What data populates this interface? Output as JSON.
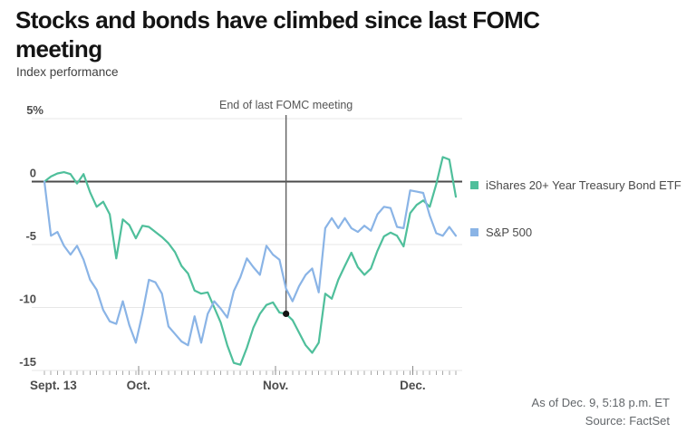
{
  "header": {
    "title": "Stocks and bonds have climbed since last FOMC meeting",
    "subtitle": "Index performance"
  },
  "footer": {
    "as_of": "As of Dec. 9, 5:18 p.m. ET",
    "source": "Source: FactSet"
  },
  "chart_data": {
    "type": "line",
    "title": "Stocks and bonds have climbed since last FOMC meeting",
    "subtitle": "Index performance",
    "unit": "percent change",
    "grid": true,
    "legend_position": "right",
    "x_axis": {
      "start_label": "Sept. 13",
      "month_labels": [
        "Oct.",
        "Nov.",
        "Dec."
      ],
      "month_tick_days": [
        14.4,
        35.4,
        56.4
      ],
      "n_points": 64
    },
    "y_axis": {
      "ticks": [
        {
          "label": "5%",
          "value": 5
        },
        {
          "label": "0",
          "value": 0
        },
        {
          "label": "-5",
          "value": -5
        },
        {
          "label": "-10",
          "value": -10
        },
        {
          "label": "-15",
          "value": -15
        }
      ],
      "ylim": [
        -15.5,
        5.5
      ]
    },
    "series": [
      {
        "name": "iShares 20+ Year Treasury Bond ETF",
        "color": "#4fbf9b",
        "values": [
          0,
          0.4,
          0.65,
          0.75,
          0.6,
          -0.15,
          0.6,
          -0.85,
          -2.0,
          -1.6,
          -2.6,
          -6.1,
          -3.0,
          -3.45,
          -4.5,
          -3.5,
          -3.6,
          -4.0,
          -4.4,
          -4.9,
          -5.6,
          -6.7,
          -7.3,
          -8.65,
          -8.9,
          -8.8,
          -10.0,
          -11.2,
          -13.0,
          -14.4,
          -14.55,
          -13.2,
          -11.6,
          -10.5,
          -9.8,
          -9.6,
          -10.4,
          -10.5,
          -11.0,
          -12.0,
          -13.0,
          -13.6,
          -12.8,
          -8.9,
          -9.3,
          -7.8,
          -6.7,
          -5.65,
          -6.8,
          -7.4,
          -6.9,
          -5.5,
          -4.35,
          -4.05,
          -4.3,
          -5.15,
          -2.5,
          -1.85,
          -1.5,
          -2.0,
          -0.2,
          1.95,
          1.75,
          -1.2
        ]
      },
      {
        "name": "S&P 500",
        "color": "#8ab4e6",
        "values": [
          0,
          -4.3,
          -4.0,
          -5.1,
          -5.8,
          -5.1,
          -6.2,
          -7.8,
          -8.6,
          -10.2,
          -11.1,
          -11.3,
          -9.5,
          -11.4,
          -12.8,
          -10.5,
          -7.8,
          -8.0,
          -8.9,
          -11.5,
          -12.1,
          -12.7,
          -13.0,
          -10.7,
          -12.8,
          -10.5,
          -9.5,
          -10.1,
          -10.8,
          -8.7,
          -7.6,
          -6.1,
          -6.8,
          -7.4,
          -5.1,
          -5.8,
          -6.2,
          -8.5,
          -9.5,
          -8.3,
          -7.4,
          -6.9,
          -8.8,
          -3.7,
          -2.9,
          -3.7,
          -2.9,
          -3.7,
          -4.0,
          -3.5,
          -3.9,
          -2.6,
          -2.0,
          -2.1,
          -3.6,
          -3.7,
          -0.7,
          -0.8,
          -0.9,
          -2.7,
          -4.1,
          -4.3,
          -3.6,
          -4.3
        ]
      }
    ],
    "annotation": {
      "label": "End of last FOMC meeting",
      "day_index": 37,
      "series": "iShares 20+ Year Treasury Bond ETF",
      "marker_value": -10.5
    }
  }
}
